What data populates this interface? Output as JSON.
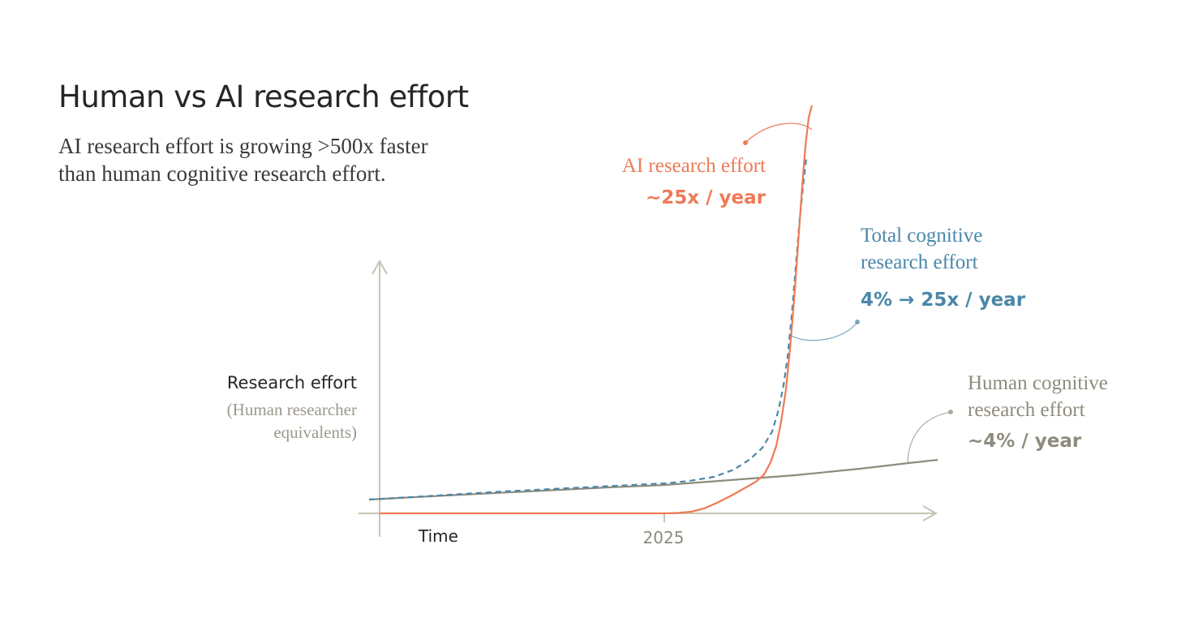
{
  "title": "Human vs AI research effort",
  "subtitle": {
    "line1": "AI research effort is growing >500x faster",
    "line2": "than human cognitive research effort."
  },
  "colors": {
    "ai": "#ee7a57",
    "total": "#4a87a8",
    "human": "#8e8b7c",
    "axis": "#c7c4b2",
    "text_dark": "#262624"
  },
  "chart_data": {
    "type": "line",
    "xlabel": "Time",
    "ylabel": "Research effort",
    "ylabel_sub_line1": "(Human researcher",
    "ylabel_sub_line2": "equivalents)",
    "x_ticks": [
      "2025"
    ],
    "grid": false,
    "series": [
      {
        "name": "AI research effort",
        "rate": "~25x / year",
        "style": "solid",
        "color": "#ee7a57",
        "shape": "flat-then-exponential"
      },
      {
        "name_line1": "Total cognitive",
        "name_line2": "research effort",
        "rate": "4% → 25x / year",
        "style": "dashed",
        "color": "#4a87a8",
        "shape": "exponential"
      },
      {
        "name_line1": "Human cognitive",
        "name_line2": "research effort",
        "rate": "~4% / year",
        "style": "solid",
        "color": "#8e8b7c",
        "shape": "slow-growth"
      }
    ]
  }
}
